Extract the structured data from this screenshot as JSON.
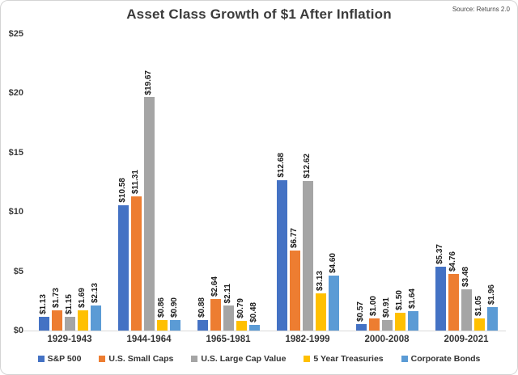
{
  "header": {
    "title": "Asset Class Growth of $1 After Inflation",
    "source": "Source: Returns 2.0"
  },
  "chart_data": {
    "type": "bar",
    "title": "Asset Class Growth of $1 After Inflation",
    "source": "Source: Returns 2.0",
    "categories": [
      "1929-1943",
      "1944-1964",
      "1965-1981",
      "1982-1999",
      "2000-2008",
      "2009-2021"
    ],
    "series": [
      {
        "name": "S&P 500",
        "color": "#4472C4",
        "values": [
          1.13,
          10.58,
          0.88,
          12.68,
          0.57,
          5.37
        ]
      },
      {
        "name": "U.S. Small Caps",
        "color": "#ED7D31",
        "values": [
          1.73,
          11.31,
          2.64,
          6.77,
          1.0,
          4.76
        ]
      },
      {
        "name": "U.S. Large Cap Value",
        "color": "#A5A5A5",
        "values": [
          1.15,
          19.67,
          2.11,
          12.62,
          0.91,
          3.48
        ]
      },
      {
        "name": "5 Year Treasuries",
        "color": "#FFC000",
        "values": [
          1.69,
          0.86,
          0.79,
          3.13,
          1.5,
          1.05
        ]
      },
      {
        "name": "Corporate Bonds",
        "color": "#5B9BD5",
        "values": [
          2.13,
          0.9,
          0.48,
          4.6,
          1.64,
          1.96
        ]
      }
    ],
    "y_ticks": [
      "$25",
      "$20",
      "$15",
      "$10",
      "$5",
      "$0"
    ],
    "ylim": [
      0,
      25
    ],
    "value_label_prefix": "$",
    "grid": false,
    "legend_position": "bottom",
    "xlabel": "",
    "ylabel": ""
  }
}
